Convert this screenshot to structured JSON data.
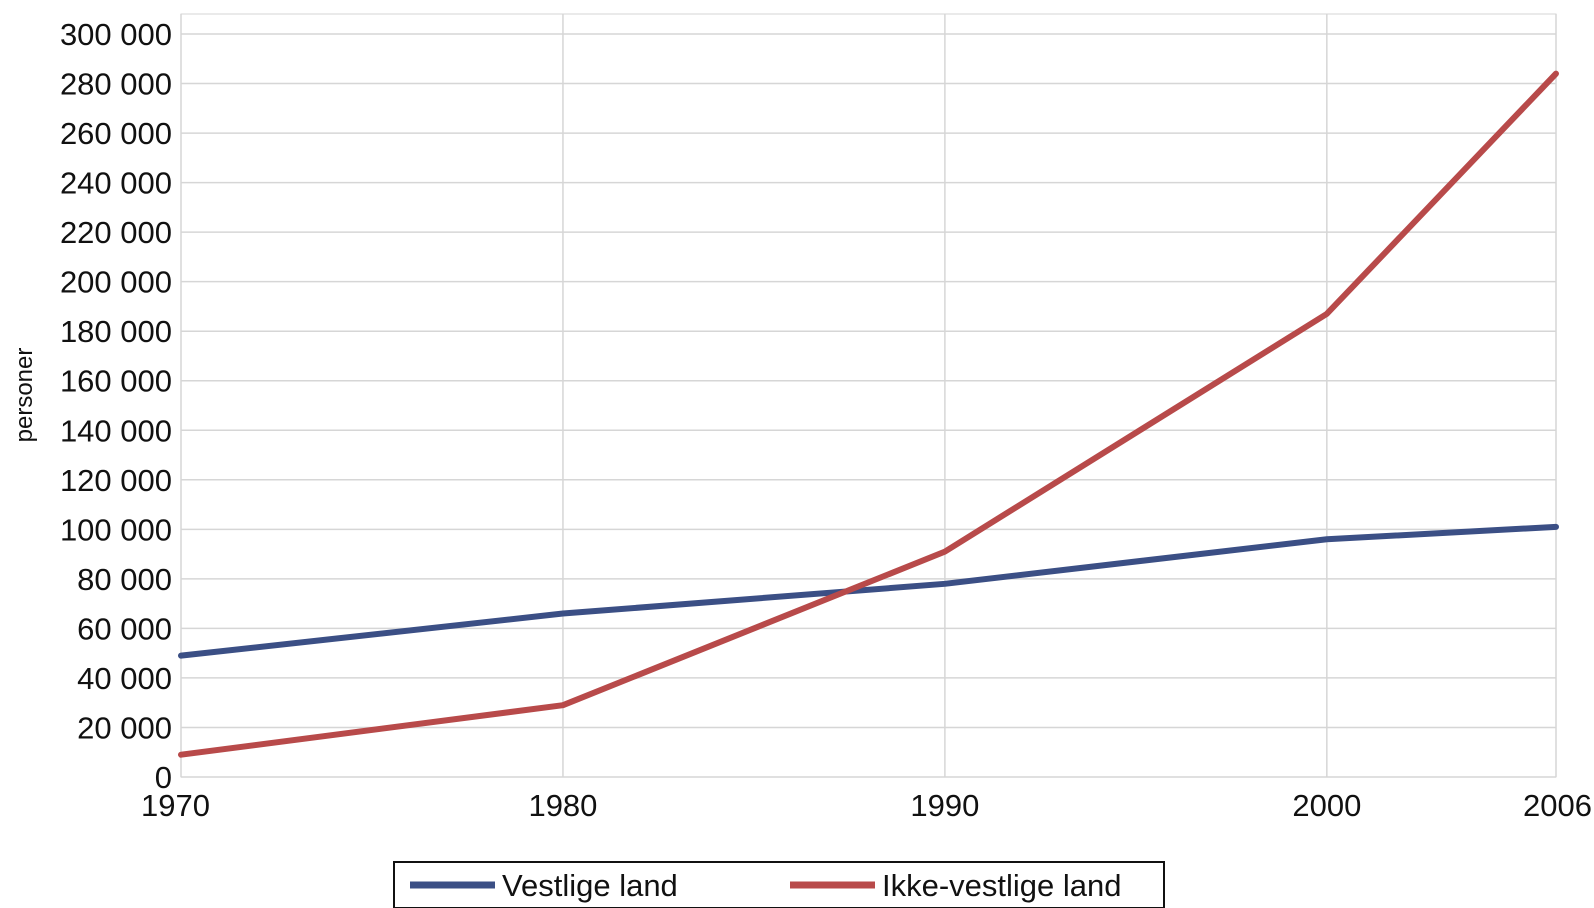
{
  "chart_data": {
    "type": "line",
    "x": [
      1970,
      1980,
      1990,
      2000,
      2006
    ],
    "xticks": [
      "1970",
      "1980",
      "1990",
      "2000",
      "2006"
    ],
    "ylabel": "personer",
    "ylim": [
      0,
      300000
    ],
    "yticks": [
      "0",
      "20 000",
      "40 000",
      "60 000",
      "80 000",
      "100 000",
      "120 000",
      "140 000",
      "160 000",
      "180 000",
      "200 000",
      "220 000",
      "240 000",
      "260 000",
      "280 000",
      "300 000"
    ],
    "grid": true,
    "legend_position": "bottom",
    "series": [
      {
        "name": "Vestlige land",
        "color": "#3b4f85",
        "values": [
          49000,
          66000,
          78000,
          96000,
          101000
        ]
      },
      {
        "name": "Ikke-vestlige land",
        "color": "#b84a4a",
        "values": [
          9000,
          29000,
          91000,
          187000,
          284000
        ]
      }
    ]
  }
}
